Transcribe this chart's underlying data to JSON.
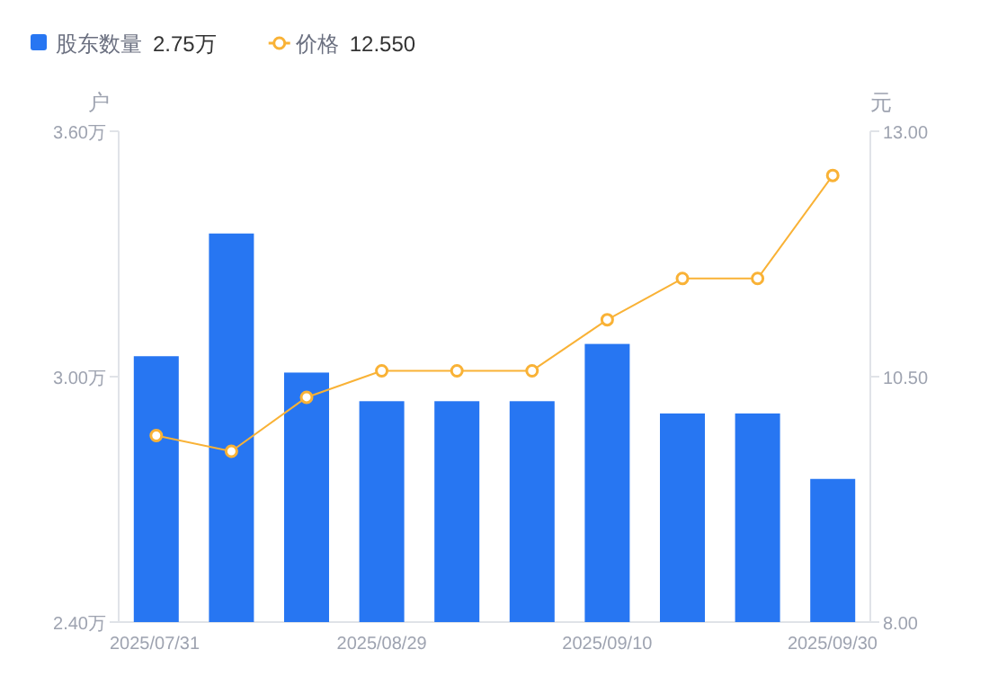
{
  "chart_data": {
    "type": "bar",
    "ylabel": "户",
    "y2label": "元",
    "categories": [
      "2025/07/31",
      null,
      null,
      "2025/08/29",
      null,
      null,
      "2025/09/10",
      null,
      null,
      "2025/09/30"
    ],
    "series": [
      {
        "name": "股东数量",
        "color": "#2776f2",
        "values": [
          3.05,
          3.35,
          3.01,
          2.94,
          2.94,
          2.94,
          3.08,
          2.91,
          2.91,
          2.75
        ]
      },
      {
        "name": "价格",
        "type": "line",
        "axis": "y2",
        "color": "#f9b236",
        "marker": "circle",
        "values": [
          9.9,
          9.74,
          10.29,
          10.56,
          10.56,
          10.56,
          11.08,
          11.5,
          11.5,
          12.55
        ]
      }
    ],
    "annotations": [
      "2.75万",
      "12.550"
    ],
    "ylim": [
      2.4,
      3.6
    ],
    "yticks": [
      {
        "value": 2.4,
        "label": "2.40万"
      },
      {
        "value": 3.0,
        "label": "3.00万"
      },
      {
        "value": 3.6,
        "label": "3.60万"
      }
    ],
    "y2lim": [
      8,
      13
    ],
    "y2ticks": [
      {
        "value": 8,
        "label": "8.00"
      },
      {
        "value": 10.5,
        "label": "10.50"
      },
      {
        "value": 13,
        "label": "13.00"
      }
    ],
    "legend": "top left",
    "grid": false
  }
}
